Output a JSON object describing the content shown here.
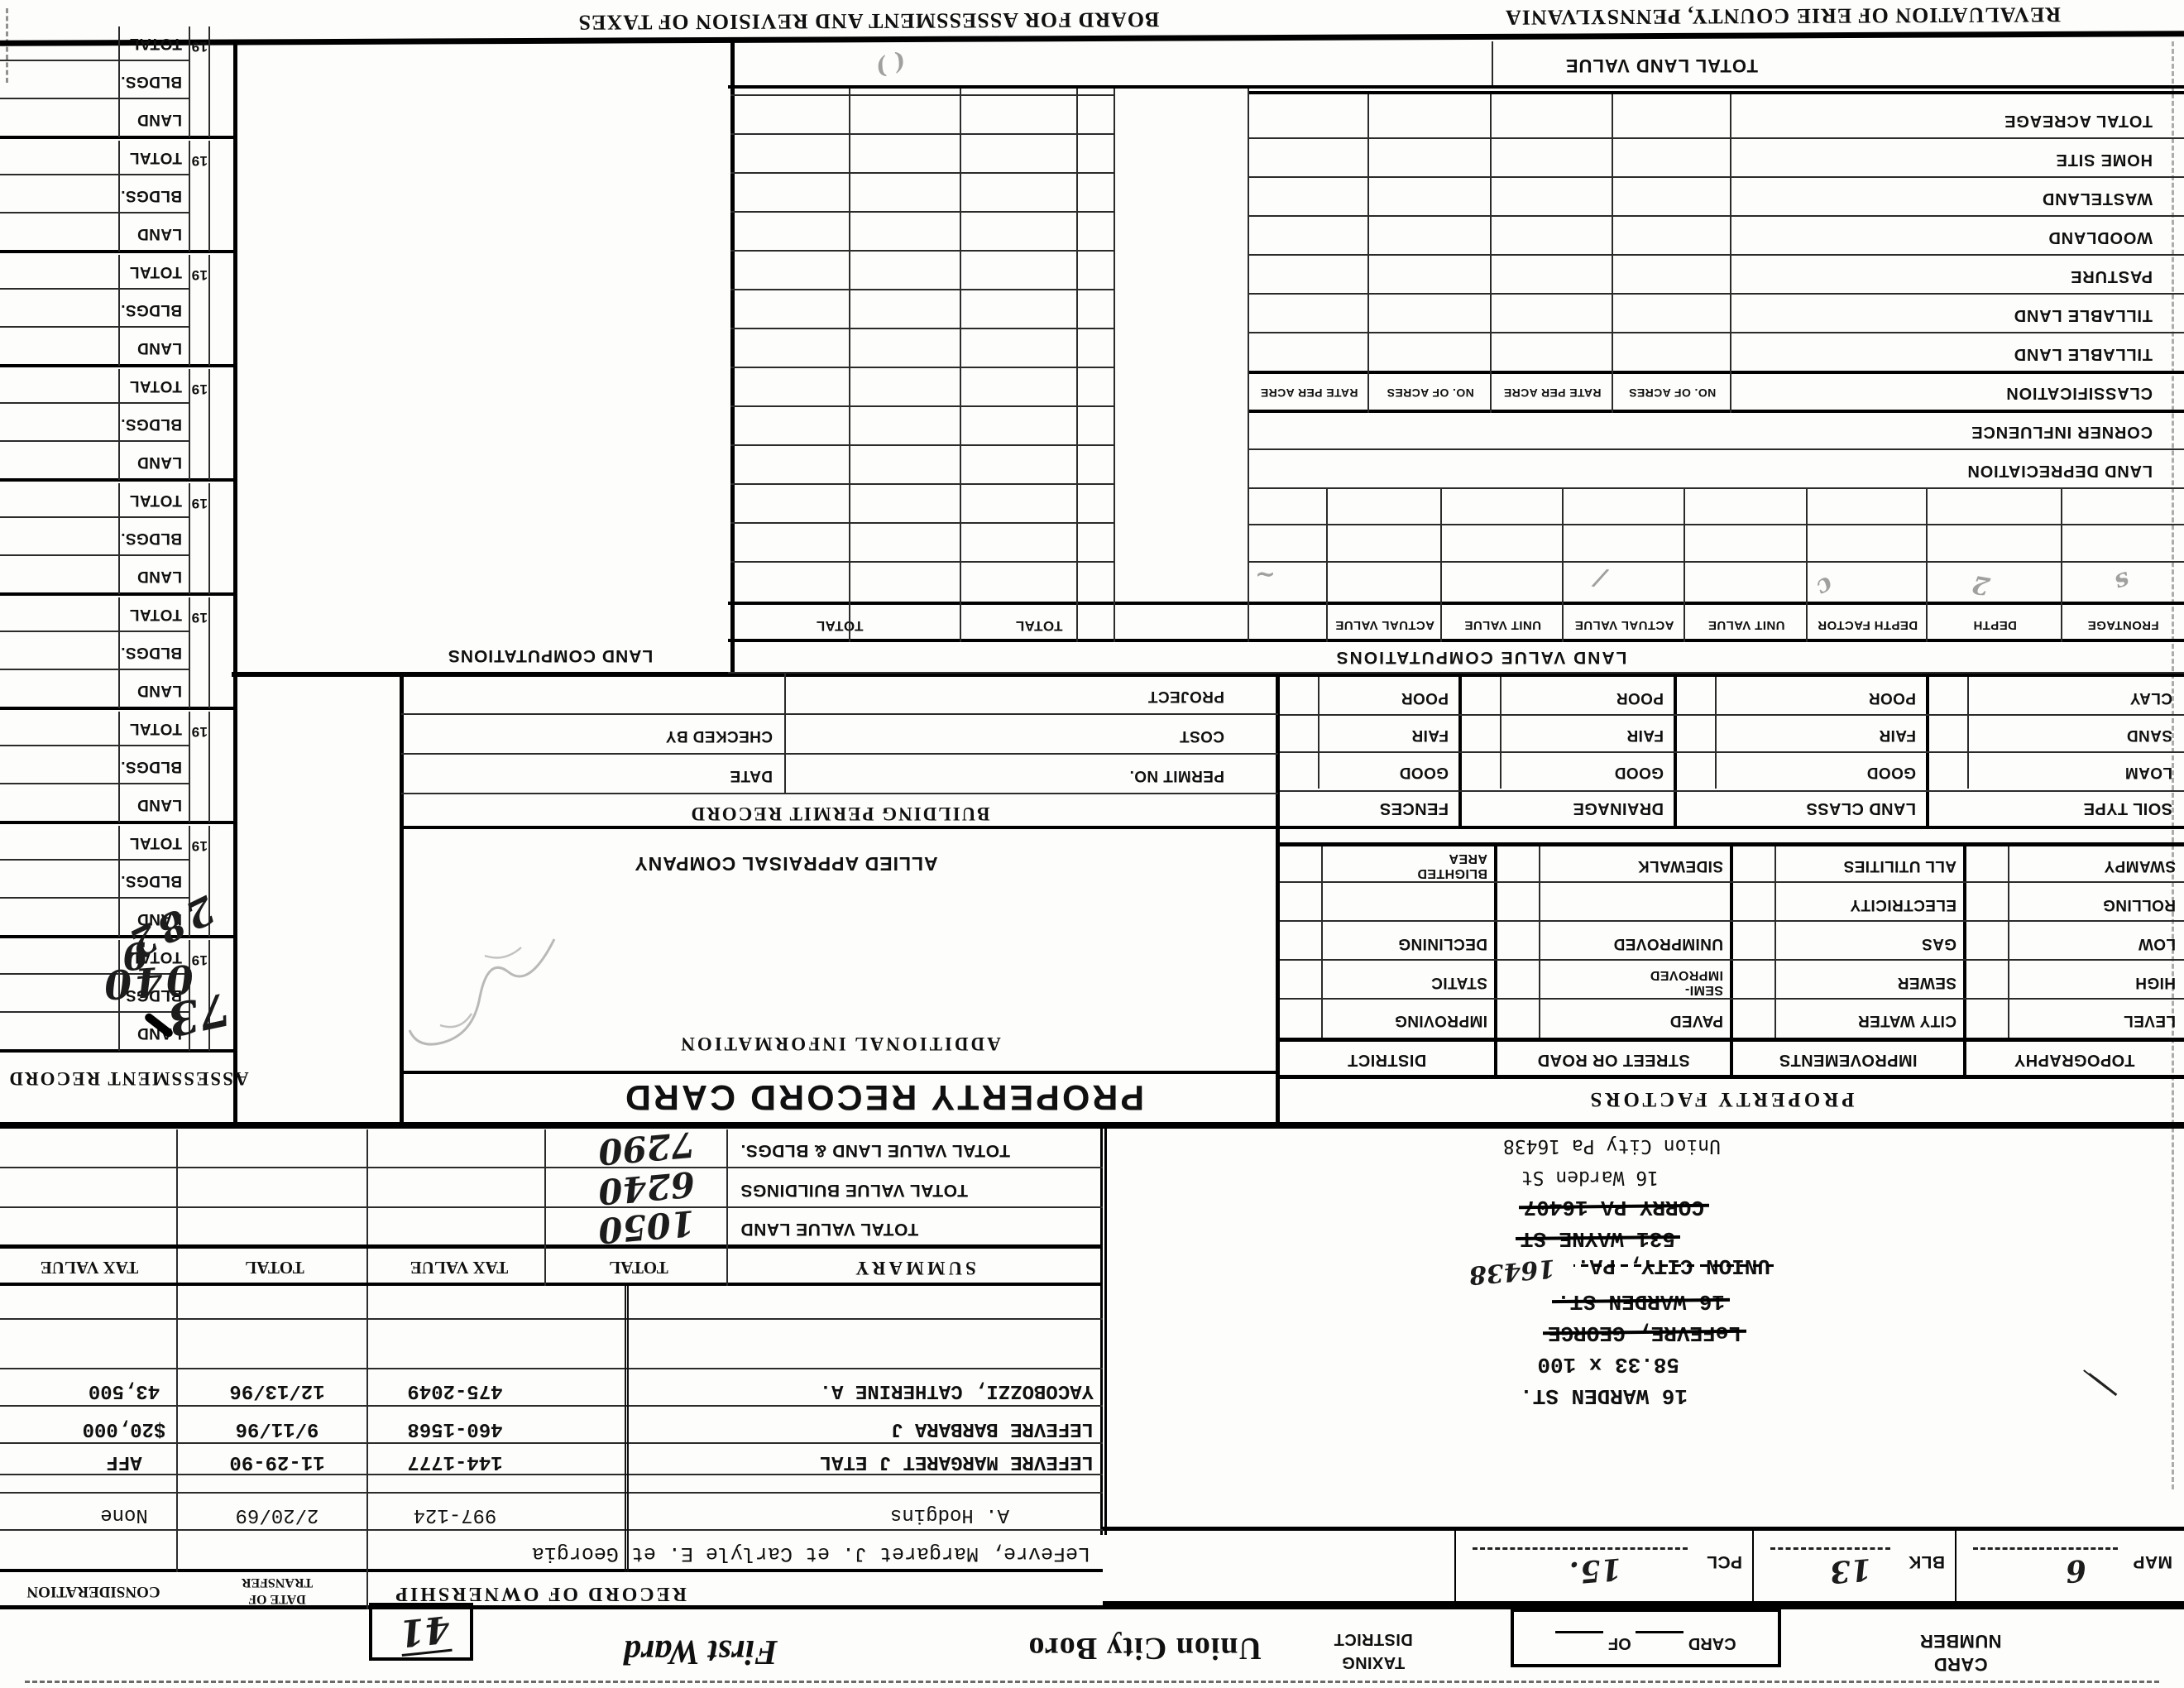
{
  "banner": {
    "left": "REVALUATION OF ERIE COUNTY, PENNSYLVANIA",
    "right": "BOARD FOR ASSESSMENT AND REVISION OF TAXES"
  },
  "top_strip": {
    "card_label": "CARD",
    "number_label": "NUMBER",
    "card_of_card": "CARD",
    "card_of_of": "OF",
    "taxing_label": "TAXING",
    "district_label": "DISTRICT",
    "municipality": "Union City Boro",
    "ward": "First Ward",
    "ward_box_value": "41"
  },
  "parcel": {
    "cells": [
      {
        "label": "MAP",
        "value": "6"
      },
      {
        "label": "BLK",
        "value": "13"
      },
      {
        "label": "PCL",
        "value": "15."
      }
    ]
  },
  "address_block": {
    "lines": [
      {
        "text": "16 WARDEN ST.",
        "struck": false,
        "font": "mono"
      },
      {
        "text": "58.33 x 100",
        "struck": false,
        "font": "mono"
      },
      {
        "text": "LeFEVRE, GEORGE",
        "struck": true,
        "font": "mono"
      },
      {
        "text": "16 WARDEN ST.",
        "struck": true,
        "font": "mono"
      },
      {
        "text": "UNION CITY, PA.",
        "struck": "dotted",
        "font": "mono",
        "handwritten_suffix": "16438"
      },
      {
        "text": "531 WAYNE ST",
        "struck": true,
        "font": "mono"
      },
      {
        "text": "CORRY PA 16407",
        "struck": true,
        "font": "mono"
      },
      {
        "text": "16 Warden St",
        "struck": false,
        "font": "matrix"
      },
      {
        "text": "Union City Pa 16438",
        "struck": false,
        "font": "matrix"
      }
    ]
  },
  "ownership": {
    "title": "RECORD OF OWNERSHIP",
    "date_label_line1": "DATE OF",
    "date_label_line2": "TRANSFER",
    "consideration_label": "CONSIDERATION",
    "long_name_row": "LeFevre, Margaret J. et Carlyle E. et Georgia",
    "rows": [
      {
        "name": "A. Hodgins",
        "book": "997-124",
        "date": "2/20/69",
        "consideration": "None"
      },
      {
        "name": "LEFEVRE MARGARET J ETAL",
        "book": "144-1777",
        "date": "11-29-90",
        "consideration": "AFF"
      },
      {
        "name": "LEFEVRE BARBARA J",
        "book": "460-1568",
        "date": "9/11/96",
        "consideration": "$20,000"
      },
      {
        "name": "YACOBOZZI, CATHERINE A.",
        "book": "475-2049",
        "date": "12/13/96",
        "consideration": "43,500"
      }
    ]
  },
  "summary": {
    "title": "SUMMARY",
    "col_headers": [
      "TOTAL",
      "TAX VALUE",
      "TOTAL",
      "TAX VALUE"
    ],
    "rows": [
      {
        "label": "TOTAL VALUE LAND",
        "total": "1050"
      },
      {
        "label": "TOTAL VALUE BUILDINGS",
        "total": "6240"
      },
      {
        "label": "TOTAL VALUE LAND & BLDGS.",
        "total": "7290"
      }
    ]
  },
  "titles": {
    "property_record_card": "PROPERTY RECORD CARD",
    "additional_information": "ADDITIONAL  INFORMATION",
    "allied": "ALLIED APPRAISAL COMPANY",
    "assessment_record": "ASSESSMENT  RECORD",
    "land_value_computations": "LAND  VALUE  COMPUTATIONS",
    "land_computations": "LAND COMPUTATIONS",
    "property_factors": "PROPERTY  FACTORS",
    "building_permit_record": "BUILDING  PERMIT  RECORD"
  },
  "permit_box": {
    "rows": [
      {
        "left": "PERMIT NO.",
        "right": "DATE"
      },
      {
        "left": "COST",
        "right": "CHECKED BY"
      },
      {
        "left": "PROJECT",
        "right": ""
      }
    ]
  },
  "property_factors": {
    "columns": [
      {
        "header": "TOPOGRAPHY",
        "items": [
          "LEVEL",
          "HIGH",
          "LOW",
          "ROLLING",
          "SWAMPY"
        ]
      },
      {
        "header": "IMPROVEMENTS",
        "items": [
          "CITY WATER",
          "SEWER",
          "GAS",
          "ELECTRICITY",
          "ALL UTILITIES"
        ]
      },
      {
        "header": "STREET OR ROAD",
        "items": [
          "PAVED",
          "SEMI-|IMPROVED",
          "UNIMPROVED",
          "",
          "SIDEWALK"
        ]
      },
      {
        "header": "DISTRICT",
        "items": [
          "IMPROVING",
          "STATIC",
          "DECLINING",
          "",
          "BLIGHTED|AREA"
        ]
      }
    ]
  },
  "soil": {
    "columns": [
      {
        "header": "SOIL TYPE",
        "items": [
          "LOAM",
          "SAND",
          "CLAY"
        ]
      },
      {
        "header": "LAND CLASS",
        "items": [
          "GOOD",
          "FAIR",
          "POOR"
        ]
      },
      {
        "header": "DRAINAGE",
        "items": [
          "GOOD",
          "FAIR",
          "POOR"
        ]
      },
      {
        "header": "FENCES",
        "items": [
          "GOOD",
          "FAIR",
          "POOR"
        ]
      }
    ]
  },
  "land_table": {
    "frontage_headers": [
      "FRONTAGE",
      "DEPTH",
      "DEPTH FACTOR",
      "UNIT VALUE",
      "ACTUAL VALUE",
      "UNIT VALUE",
      "ACTUAL VALUE"
    ],
    "total_headers": [
      "TOTAL",
      "TOTAL"
    ],
    "classification_label": "CLASSIFICATION",
    "classification_cols": [
      "NO. OF ACRES",
      "RATE PER ACRE",
      "NO. OF ACRES",
      "RATE PER ACRE"
    ],
    "row_labels": [
      "LAND DEPRECIATION",
      "CORNER INFLUENCE"
    ],
    "acreage_rows": [
      "TILLABLE LAND",
      "TILLABLE LAND",
      "PASTURE",
      "WOODLAND",
      "WASTELAND",
      "HOME SITE",
      "TOTAL ACREAGE"
    ],
    "total_row_label": "TOTAL LAND VALUE"
  },
  "assessment": {
    "year_prefix": "19",
    "row_labels": [
      "LAND",
      "BLDGS.",
      "TOTAL"
    ],
    "group_count": 9
  },
  "handwriting": {
    "zip_added": "16438",
    "assessment_year": "73",
    "assessment_marks": [
      "282",
      "040",
      "9"
    ],
    "illegible_marks": [
      "s",
      "2",
      "c",
      "/",
      "~"
    ]
  }
}
